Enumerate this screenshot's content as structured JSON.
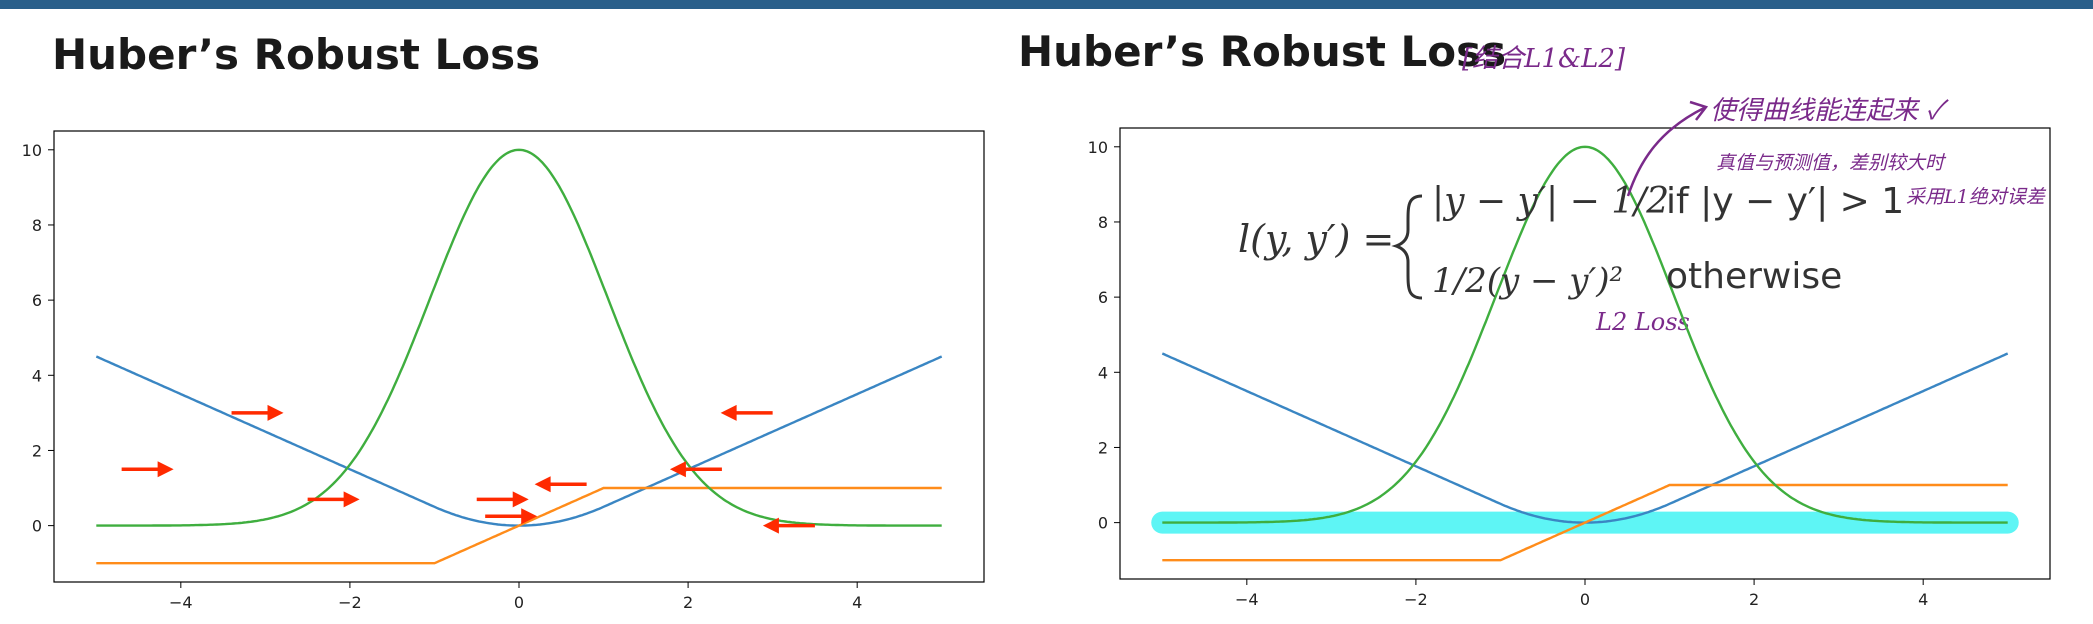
{
  "slide": {
    "title_left": "Huber’s Robust Loss",
    "title_right": "Huber’s Robust Loss",
    "bracket_note": "[结合L1&L2]",
    "arrow_note": "使得曲线能连起来 ✓",
    "diff_note": "真值与预测值，差别较大时",
    "l1_note": "采用L1绝对误差",
    "l2_note": "L2 Loss"
  },
  "formula": {
    "lhs": "l(y, y′) =",
    "case1": "|y − y′| − 1/2",
    "case1_cond": "if |y − y′| > 1",
    "case2": "1/2(y − y′)²",
    "case2_cond": "otherwise"
  },
  "colors": {
    "blue": "#3a86c3",
    "orange": "#ff8c1a",
    "green": "#3fae3f",
    "red": "#ff2a00",
    "cyan": "#5ef5f5",
    "annotation": "#7a2a8a",
    "topbar": "#2a5f8a"
  },
  "chart_data": [
    {
      "type": "line",
      "title": "",
      "xlabel": "",
      "ylabel": "",
      "xlim": [
        -5.5,
        5.5
      ],
      "ylim": [
        -1.5,
        10.5
      ],
      "xticks": [
        -4,
        -2,
        0,
        2,
        4
      ],
      "yticks": [
        0,
        2,
        4,
        6,
        8,
        10
      ],
      "grid": false,
      "series": [
        {
          "color": "blue",
          "function": "huber_loss",
          "x": [
            -5,
            -1,
            0,
            1,
            5
          ],
          "y": [
            4.5,
            0.5,
            0,
            0.5,
            4.5
          ]
        },
        {
          "color": "orange",
          "function": "huber_gradient",
          "x": [
            -5,
            -1,
            1,
            5
          ],
          "y": [
            -1,
            -1,
            1,
            1
          ]
        },
        {
          "color": "green",
          "function": "likelihood",
          "x": [
            -5,
            -2,
            0,
            2,
            5
          ],
          "y": [
            0.13,
            2.3,
            10,
            2.3,
            0.13
          ]
        }
      ],
      "arrows": [
        {
          "x": -3.4,
          "y": 3.0,
          "dir": "right"
        },
        {
          "x": -4.7,
          "y": 1.5,
          "dir": "right"
        },
        {
          "x": -2.5,
          "y": 0.7,
          "dir": "right"
        },
        {
          "x": -0.5,
          "y": 0.7,
          "dir": "right"
        },
        {
          "x": -0.4,
          "y": 0.25,
          "dir": "right"
        },
        {
          "x": 3.0,
          "y": 3.0,
          "dir": "left"
        },
        {
          "x": 0.8,
          "y": 1.1,
          "dir": "left"
        },
        {
          "x": 2.4,
          "y": 1.5,
          "dir": "left"
        },
        {
          "x": 3.5,
          "y": 0.0,
          "dir": "left"
        }
      ]
    },
    {
      "type": "line",
      "title": "",
      "xlabel": "",
      "ylabel": "",
      "xlim": [
        -5.5,
        5.5
      ],
      "ylim": [
        -1.5,
        10.5
      ],
      "xticks": [
        -4,
        -2,
        0,
        2,
        4
      ],
      "yticks": [
        0,
        2,
        4,
        6,
        8,
        10
      ],
      "grid": false,
      "highlight": {
        "y": 0.0,
        "x": [
          -5,
          5
        ],
        "color": "cyan"
      },
      "series": [
        {
          "color": "blue",
          "function": "huber_loss",
          "x": [
            -5,
            -1,
            0,
            1,
            5
          ],
          "y": [
            4.5,
            0.5,
            0,
            0.5,
            4.5
          ]
        },
        {
          "color": "orange",
          "function": "huber_gradient",
          "x": [
            -5,
            -1,
            1,
            5
          ],
          "y": [
            -1,
            -1,
            1,
            1
          ]
        },
        {
          "color": "green",
          "function": "likelihood",
          "x": [
            -5,
            -2,
            0,
            2,
            5
          ],
          "y": [
            0.13,
            2.3,
            10,
            2.3,
            0.13
          ]
        }
      ]
    }
  ]
}
